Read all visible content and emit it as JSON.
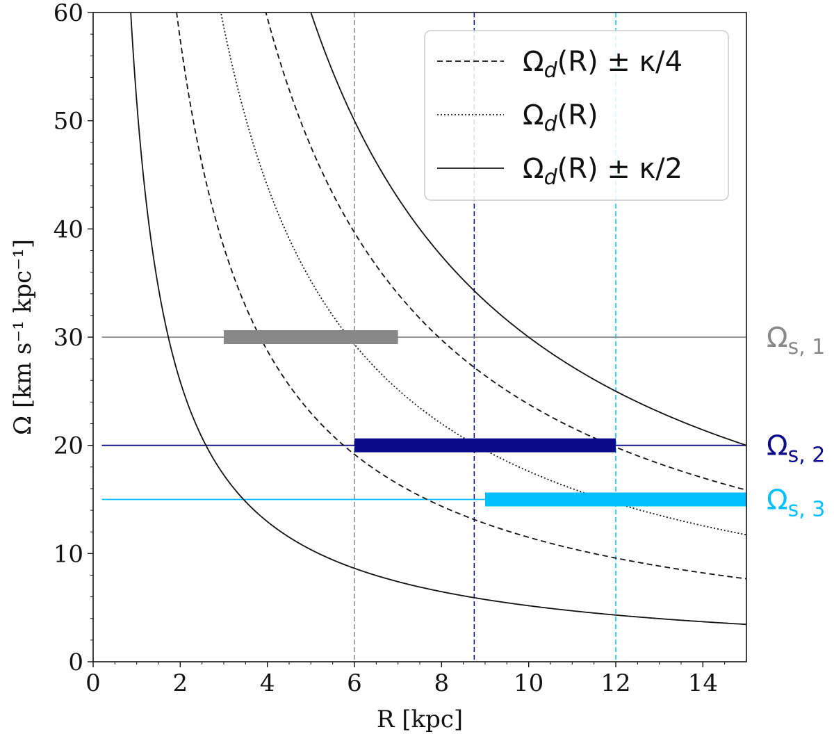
{
  "chart_data": {
    "type": "line",
    "xlabel": "R [kpc]",
    "ylabel": "Ω [km s⁻¹ kpc⁻¹]",
    "xlim": [
      0,
      15
    ],
    "ylim": [
      0,
      60
    ],
    "xticks": [
      "0",
      "2",
      "4",
      "6",
      "8",
      "10",
      "12",
      "14"
    ],
    "yticks": [
      "0",
      "10",
      "20",
      "30",
      "40",
      "50",
      "60"
    ],
    "legend": {
      "placement": "top-right",
      "entries": [
        {
          "label": "Ω_d(R) ± κ/4",
          "style": "dashed"
        },
        {
          "label": "Ω_d(R)",
          "style": "dotted"
        },
        {
          "label": "Ω_d(R) ± κ/2",
          "style": "solid"
        }
      ]
    },
    "series": [
      {
        "name": "Ω_d(R) − κ/2",
        "style": "solid",
        "coef": 51.8
      },
      {
        "name": "Ω_d(R) − κ/4",
        "style": "dashed",
        "coef": 115
      },
      {
        "name": "Ω_d(R)",
        "style": "dotted",
        "coef": 176
      },
      {
        "name": "Ω_d(R) + κ/4",
        "style": "dashed",
        "coef": 238
      },
      {
        "name": "Ω_d(R) + κ/2",
        "style": "solid",
        "coef": 300
      }
    ],
    "pattern_speeds": [
      {
        "name": "Ω_s,1",
        "label_main": "Ω",
        "label_sub": "s, 1",
        "value": 30,
        "color": "#888888",
        "bar_range": [
          3.0,
          7.0
        ],
        "resonance_R": 6.0
      },
      {
        "name": "Ω_s,2",
        "label_main": "Ω",
        "label_sub": "s, 2",
        "value": 20,
        "color": "#0a0a8a",
        "bar_range": [
          6.0,
          12.0
        ],
        "resonance_R": 8.75
      },
      {
        "name": "Ω_s,3",
        "label_main": "Ω",
        "label_sub": "s, 3",
        "value": 15,
        "color": "#00bfff",
        "bar_range": [
          9.0,
          15.0
        ],
        "resonance_R": 12.0
      }
    ]
  }
}
